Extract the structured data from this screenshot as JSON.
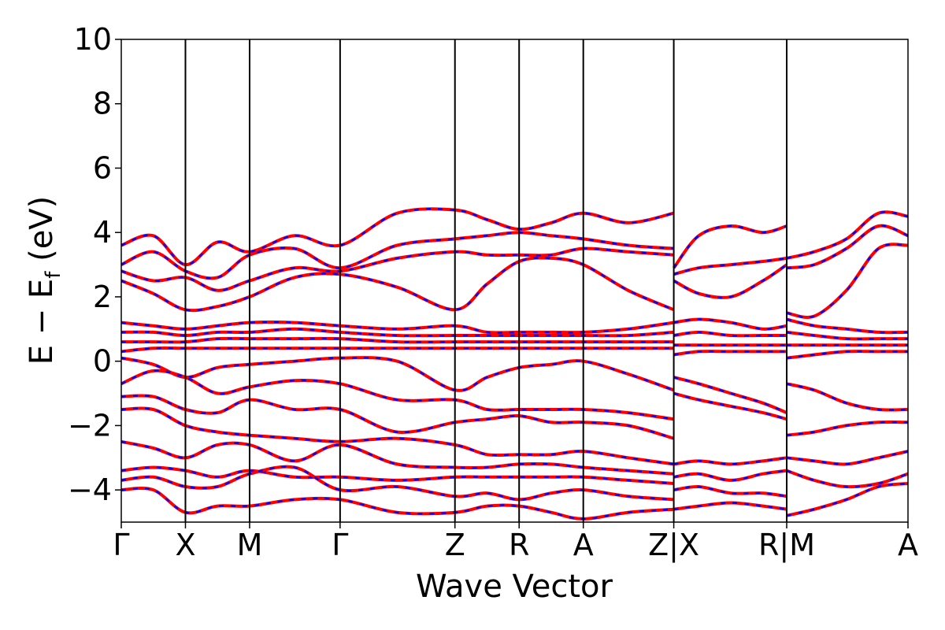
{
  "chart_data": {
    "type": "line",
    "xlabel": "Wave Vector",
    "ylabel_main": "E − E",
    "ylabel_sub": "f",
    "ylabel_unit": " (eV)",
    "ylim": [
      -5,
      10
    ],
    "yticks": [
      -4,
      -2,
      0,
      2,
      4,
      6,
      8,
      10
    ],
    "ytick_labels": [
      "−4",
      "−2",
      "0",
      "2",
      "4",
      "6",
      "8",
      "10"
    ],
    "xlim": [
      0,
      12.26
    ],
    "kpoint_ticks": [
      {
        "x": 0.0,
        "label": "Γ"
      },
      {
        "x": 1.0,
        "label": "X"
      },
      {
        "x": 2.0,
        "label": "M"
      },
      {
        "x": 3.41,
        "label": "Γ"
      },
      {
        "x": 5.2,
        "label": "Z"
      },
      {
        "x": 6.2,
        "label": "R"
      },
      {
        "x": 7.2,
        "label": "A"
      },
      {
        "x": 8.61,
        "label": "Z|X"
      },
      {
        "x": 10.37,
        "label": "R|M"
      },
      {
        "x": 12.26,
        "label": "A"
      }
    ],
    "colors": {
      "primary": "#ff0000",
      "secondary": "#0000ff"
    },
    "series": [
      {
        "x": [
          0,
          0.5,
          1.0,
          1.5,
          2.0,
          2.7,
          3.41,
          4.3,
          5.2,
          5.7,
          6.2,
          6.7,
          7.2,
          7.9,
          8.61
        ],
        "y": [
          3.6,
          3.9,
          3.0,
          3.7,
          3.4,
          3.9,
          3.6,
          4.6,
          4.7,
          4.4,
          4.1,
          4.3,
          4.6,
          4.3,
          4.6
        ]
      },
      {
        "x": [
          0,
          0.5,
          1.0,
          1.5,
          2.0,
          2.7,
          3.41,
          4.3,
          5.2,
          5.7,
          6.2,
          6.7,
          7.2,
          7.9,
          8.61
        ],
        "y": [
          3.0,
          3.4,
          2.8,
          2.6,
          3.3,
          3.5,
          2.9,
          3.6,
          3.8,
          3.9,
          4.0,
          3.9,
          3.8,
          3.6,
          3.5
        ]
      },
      {
        "x": [
          0,
          0.5,
          1.0,
          1.5,
          2.0,
          2.7,
          3.41,
          4.3,
          5.2,
          5.7,
          6.2,
          6.7,
          7.2,
          7.9,
          8.61
        ],
        "y": [
          2.8,
          2.5,
          2.6,
          2.2,
          2.5,
          2.9,
          2.8,
          3.2,
          3.4,
          3.3,
          3.3,
          3.3,
          3.5,
          3.4,
          3.3
        ]
      },
      {
        "x": [
          0,
          0.5,
          1.0,
          1.5,
          2.0,
          2.7,
          3.41,
          4.3,
          5.2,
          5.7,
          6.2,
          6.7,
          7.2,
          7.9,
          8.61
        ],
        "y": [
          2.5,
          2.1,
          1.6,
          1.7,
          2.0,
          2.6,
          2.7,
          2.3,
          1.6,
          2.4,
          3.1,
          3.2,
          3.0,
          2.2,
          1.6
        ]
      },
      {
        "x": [
          0,
          0.5,
          1.0,
          1.5,
          2.0,
          2.7,
          3.41,
          4.3,
          5.2,
          5.7,
          6.2,
          6.7,
          7.2,
          7.9,
          8.61
        ],
        "y": [
          1.2,
          1.1,
          1.0,
          1.1,
          1.2,
          1.2,
          1.1,
          1.0,
          1.1,
          0.9,
          0.9,
          0.9,
          0.9,
          1.0,
          1.2
        ]
      },
      {
        "x": [
          0,
          0.5,
          1.0,
          1.5,
          2.0,
          2.7,
          3.41,
          4.3,
          5.2,
          5.7,
          6.2,
          6.7,
          7.2,
          7.9,
          8.61
        ],
        "y": [
          0.9,
          0.9,
          0.8,
          0.9,
          0.9,
          1.0,
          0.9,
          0.8,
          0.8,
          0.8,
          0.8,
          0.8,
          0.8,
          0.8,
          0.9
        ]
      },
      {
        "x": [
          0,
          0.5,
          1.0,
          1.5,
          2.0,
          2.7,
          3.41,
          4.3,
          5.2,
          5.7,
          6.2,
          6.7,
          7.2,
          7.9,
          8.61
        ],
        "y": [
          0.6,
          0.6,
          0.6,
          0.7,
          0.7,
          0.7,
          0.7,
          0.6,
          0.6,
          0.6,
          0.6,
          0.6,
          0.6,
          0.6,
          0.6
        ]
      },
      {
        "x": [
          0,
          0.5,
          1.0,
          1.5,
          2.0,
          2.7,
          3.41,
          4.3,
          5.2,
          5.7,
          6.2,
          6.7,
          7.2,
          7.9,
          8.61
        ],
        "y": [
          0.3,
          0.4,
          0.4,
          0.4,
          0.4,
          0.4,
          0.4,
          0.4,
          0.4,
          0.4,
          0.4,
          0.4,
          0.4,
          0.4,
          0.4
        ]
      },
      {
        "x": [
          0,
          0.5,
          1.0,
          1.5,
          2.0,
          2.7,
          3.41,
          4.3,
          5.2,
          5.7,
          6.2,
          6.7,
          7.2,
          7.9,
          8.61
        ],
        "y": [
          0.1,
          -0.1,
          -0.5,
          -0.2,
          -0.1,
          0.0,
          0.1,
          0.0,
          -0.9,
          -0.5,
          -0.2,
          -0.1,
          0.0,
          -0.4,
          -0.9
        ]
      },
      {
        "x": [
          0,
          0.5,
          1.0,
          1.5,
          2.0,
          2.7,
          3.41,
          4.3,
          5.2,
          5.7,
          6.2,
          6.7,
          7.2,
          7.9,
          8.61
        ],
        "y": [
          -0.7,
          -0.3,
          -0.5,
          -1.0,
          -0.8,
          -0.6,
          -0.7,
          -1.2,
          -1.2,
          -1.5,
          -1.5,
          -1.5,
          -1.5,
          -1.6,
          -1.8
        ]
      },
      {
        "x": [
          0,
          0.5,
          1.0,
          1.5,
          2.0,
          2.7,
          3.41,
          4.3,
          5.2,
          5.7,
          6.2,
          6.7,
          7.2,
          7.9,
          8.61
        ],
        "y": [
          -1.1,
          -1.1,
          -1.5,
          -1.6,
          -1.2,
          -1.5,
          -1.5,
          -2.2,
          -1.9,
          -1.8,
          -1.7,
          -1.9,
          -1.9,
          -2.0,
          -2.4
        ]
      },
      {
        "x": [
          0,
          0.5,
          1.0,
          1.5,
          2.0,
          2.7,
          3.41,
          4.3,
          5.2,
          5.7,
          6.2,
          6.7,
          7.2,
          7.9,
          8.61
        ],
        "y": [
          -1.5,
          -1.5,
          -2.0,
          -2.2,
          -2.3,
          -2.4,
          -2.5,
          -2.4,
          -2.6,
          -2.9,
          -2.9,
          -2.9,
          -2.8,
          -3.0,
          -3.2
        ]
      },
      {
        "x": [
          0,
          0.5,
          1.0,
          1.5,
          2.0,
          2.7,
          3.41,
          4.3,
          5.2,
          5.7,
          6.2,
          6.7,
          7.2,
          7.9,
          8.61
        ],
        "y": [
          -2.5,
          -2.7,
          -3.0,
          -2.6,
          -2.6,
          -3.1,
          -2.6,
          -3.2,
          -3.3,
          -3.3,
          -3.2,
          -3.2,
          -3.3,
          -3.4,
          -3.5
        ]
      },
      {
        "x": [
          0,
          0.5,
          1.0,
          1.5,
          2.0,
          2.7,
          3.41,
          4.3,
          5.2,
          5.7,
          6.2,
          6.7,
          7.2,
          7.9,
          8.61
        ],
        "y": [
          -3.4,
          -3.3,
          -3.4,
          -3.6,
          -3.4,
          -3.6,
          -3.6,
          -3.7,
          -3.6,
          -3.6,
          -3.6,
          -3.6,
          -3.6,
          -3.7,
          -3.8
        ]
      },
      {
        "x": [
          0,
          0.5,
          1.0,
          1.5,
          2.0,
          2.7,
          3.41,
          4.3,
          5.2,
          5.7,
          6.2,
          6.7,
          7.2,
          7.9,
          8.61
        ],
        "y": [
          -3.7,
          -3.6,
          -3.9,
          -3.9,
          -3.5,
          -3.3,
          -4.0,
          -3.9,
          -4.2,
          -4.1,
          -4.3,
          -4.1,
          -4.0,
          -4.2,
          -4.3
        ]
      },
      {
        "x": [
          0,
          0.5,
          1.0,
          1.5,
          2.0,
          2.7,
          3.41,
          4.3,
          5.2,
          5.7,
          6.2,
          6.7,
          7.2,
          7.9,
          8.61
        ],
        "y": [
          -4.0,
          -4.0,
          -4.7,
          -4.5,
          -4.5,
          -4.3,
          -4.3,
          -4.7,
          -4.7,
          -4.5,
          -4.5,
          -4.7,
          -4.9,
          -4.7,
          -4.6
        ]
      },
      {
        "x": [
          8.61,
          9.0,
          9.5,
          10.0,
          10.37
        ],
        "y": [
          2.9,
          3.9,
          4.2,
          4.0,
          4.2
        ]
      },
      {
        "x": [
          8.61,
          9.0,
          9.5,
          10.0,
          10.37
        ],
        "y": [
          2.7,
          2.9,
          3.0,
          3.1,
          3.2
        ]
      },
      {
        "x": [
          8.61,
          9.0,
          9.5,
          10.0,
          10.37
        ],
        "y": [
          2.5,
          2.1,
          2.0,
          2.5,
          3.0
        ]
      },
      {
        "x": [
          8.61,
          9.0,
          9.5,
          10.0,
          10.37
        ],
        "y": [
          1.2,
          1.3,
          1.2,
          1.0,
          1.1
        ]
      },
      {
        "x": [
          8.61,
          9.0,
          9.5,
          10.0,
          10.37
        ],
        "y": [
          0.8,
          0.9,
          0.8,
          0.8,
          0.8
        ]
      },
      {
        "x": [
          8.61,
          9.0,
          9.5,
          10.0,
          10.37
        ],
        "y": [
          0.5,
          0.5,
          0.5,
          0.5,
          0.5
        ]
      },
      {
        "x": [
          8.61,
          9.0,
          9.5,
          10.0,
          10.37
        ],
        "y": [
          0.2,
          0.3,
          0.3,
          0.3,
          0.3
        ]
      },
      {
        "x": [
          8.61,
          9.0,
          9.5,
          10.0,
          10.37
        ],
        "y": [
          -0.5,
          -0.7,
          -1.0,
          -1.3,
          -1.6
        ]
      },
      {
        "x": [
          8.61,
          9.0,
          9.5,
          10.0,
          10.37
        ],
        "y": [
          -1.0,
          -1.2,
          -1.4,
          -1.6,
          -1.8
        ]
      },
      {
        "x": [
          8.61,
          9.0,
          9.5,
          10.0,
          10.37
        ],
        "y": [
          -3.2,
          -3.1,
          -3.2,
          -3.1,
          -3.0
        ]
      },
      {
        "x": [
          8.61,
          9.0,
          9.5,
          10.0,
          10.37
        ],
        "y": [
          -3.6,
          -3.5,
          -3.7,
          -3.5,
          -3.4
        ]
      },
      {
        "x": [
          8.61,
          9.0,
          9.5,
          10.0,
          10.37
        ],
        "y": [
          -4.0,
          -3.9,
          -4.1,
          -4.1,
          -4.2
        ]
      },
      {
        "x": [
          8.61,
          9.0,
          9.5,
          10.0,
          10.37
        ],
        "y": [
          -4.6,
          -4.5,
          -4.4,
          -4.5,
          -4.6
        ]
      },
      {
        "x": [
          10.37,
          10.8,
          11.3,
          11.8,
          12.26
        ],
        "y": [
          3.2,
          3.4,
          3.8,
          4.6,
          4.5
        ]
      },
      {
        "x": [
          10.37,
          10.8,
          11.3,
          11.8,
          12.26
        ],
        "y": [
          2.9,
          3.0,
          3.5,
          4.2,
          3.9
        ]
      },
      {
        "x": [
          10.37,
          10.8,
          11.3,
          11.8,
          12.26
        ],
        "y": [
          1.5,
          1.4,
          2.2,
          3.5,
          3.6
        ]
      },
      {
        "x": [
          10.37,
          10.8,
          11.3,
          11.8,
          12.26
        ],
        "y": [
          1.3,
          1.1,
          1.0,
          0.9,
          0.9
        ]
      },
      {
        "x": [
          10.37,
          10.8,
          11.3,
          11.8,
          12.26
        ],
        "y": [
          0.9,
          0.8,
          0.7,
          0.7,
          0.7
        ]
      },
      {
        "x": [
          10.37,
          10.8,
          11.3,
          11.8,
          12.26
        ],
        "y": [
          0.5,
          0.5,
          0.5,
          0.5,
          0.5
        ]
      },
      {
        "x": [
          10.37,
          10.8,
          11.3,
          11.8,
          12.26
        ],
        "y": [
          0.1,
          0.2,
          0.3,
          0.3,
          0.3
        ]
      },
      {
        "x": [
          10.37,
          10.8,
          11.3,
          11.8,
          12.26
        ],
        "y": [
          -0.7,
          -0.9,
          -1.3,
          -1.5,
          -1.5
        ]
      },
      {
        "x": [
          10.37,
          10.8,
          11.3,
          11.8,
          12.26
        ],
        "y": [
          -2.3,
          -2.2,
          -2.0,
          -1.9,
          -1.9
        ]
      },
      {
        "x": [
          10.37,
          10.8,
          11.3,
          11.8,
          12.26
        ],
        "y": [
          -3.0,
          -3.1,
          -3.2,
          -3.0,
          -2.8
        ]
      },
      {
        "x": [
          10.37,
          10.8,
          11.3,
          11.8,
          12.26
        ],
        "y": [
          -3.4,
          -3.7,
          -3.9,
          -3.8,
          -3.5
        ]
      },
      {
        "x": [
          10.37,
          10.8,
          11.3,
          11.8,
          12.26
        ],
        "y": [
          -4.8,
          -4.6,
          -4.3,
          -3.9,
          -3.8
        ]
      }
    ]
  }
}
